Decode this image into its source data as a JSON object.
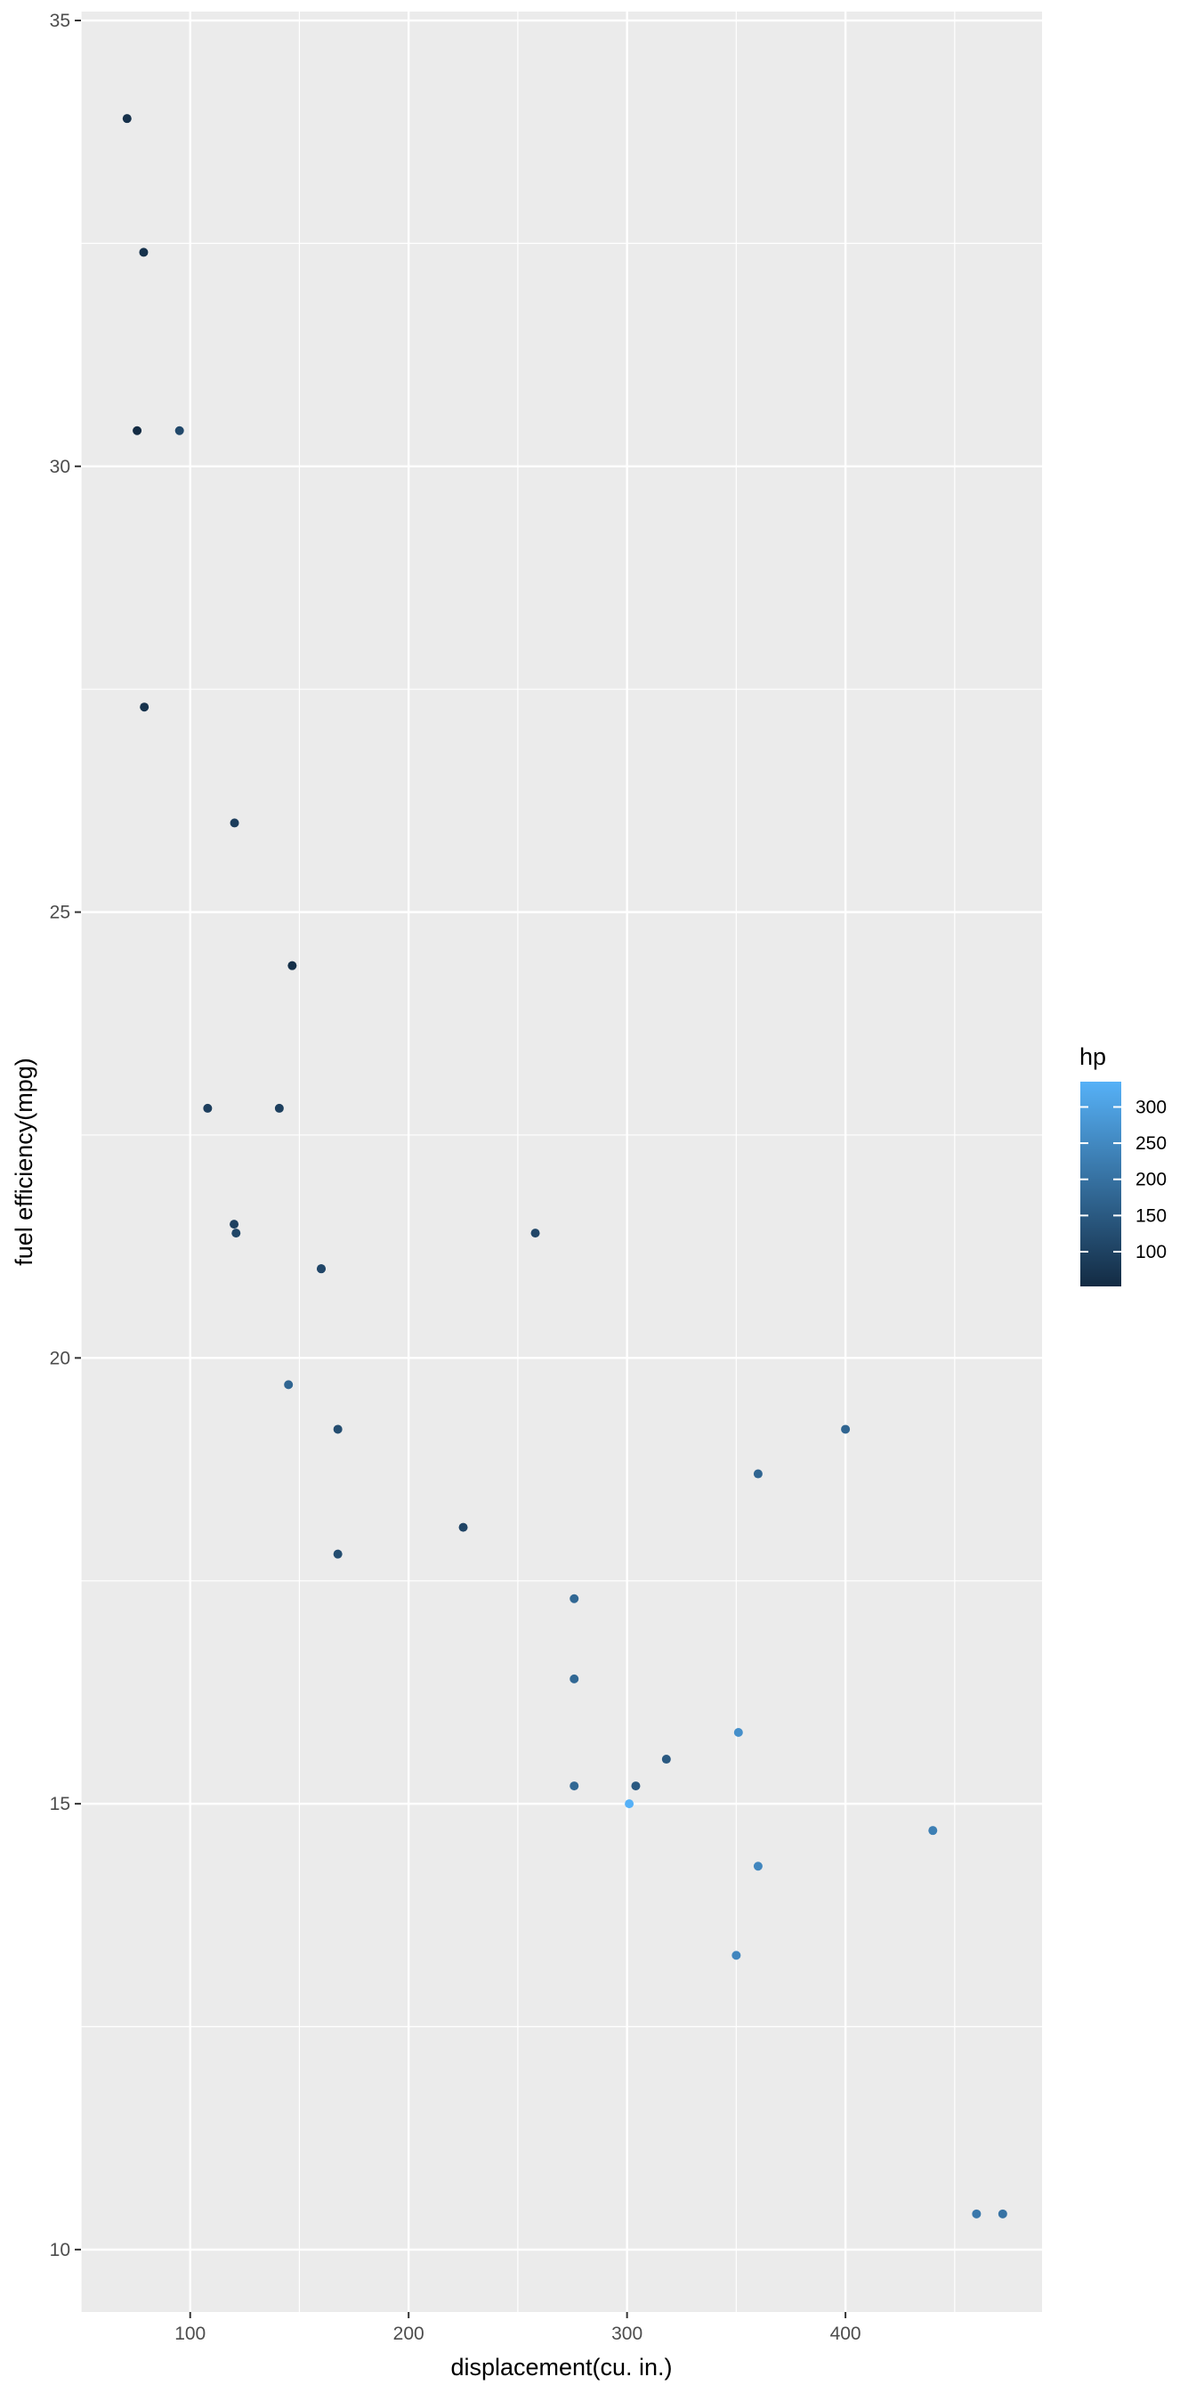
{
  "chart_data": {
    "type": "scatter",
    "xlabel": "displacement(cu. in.)",
    "ylabel": "fuel efficiency(mpg)",
    "xlim": [
      50,
      490
    ],
    "ylim": [
      9.3,
      35.1
    ],
    "x_ticks": [
      100,
      200,
      300,
      400
    ],
    "y_ticks": [
      10,
      15,
      20,
      25,
      30,
      35
    ],
    "grid": true,
    "legend": {
      "title": "hp",
      "placement": "right",
      "range": [
        52,
        335
      ],
      "ticks": [
        100,
        150,
        200,
        250,
        300
      ],
      "color_low": "#132B43",
      "color_high": "#56B1F7"
    },
    "points": [
      {
        "x": 160,
        "y": 21.0,
        "hp": 110
      },
      {
        "x": 160,
        "y": 21.0,
        "hp": 110
      },
      {
        "x": 108,
        "y": 22.8,
        "hp": 93
      },
      {
        "x": 258,
        "y": 21.4,
        "hp": 110
      },
      {
        "x": 360,
        "y": 18.7,
        "hp": 175
      },
      {
        "x": 225,
        "y": 18.1,
        "hp": 105
      },
      {
        "x": 360,
        "y": 14.3,
        "hp": 245
      },
      {
        "x": 146.7,
        "y": 24.4,
        "hp": 62
      },
      {
        "x": 140.8,
        "y": 22.8,
        "hp": 95
      },
      {
        "x": 167.6,
        "y": 19.2,
        "hp": 123
      },
      {
        "x": 167.6,
        "y": 17.8,
        "hp": 123
      },
      {
        "x": 275.8,
        "y": 16.4,
        "hp": 180
      },
      {
        "x": 275.8,
        "y": 17.3,
        "hp": 180
      },
      {
        "x": 275.8,
        "y": 15.2,
        "hp": 180
      },
      {
        "x": 472,
        "y": 10.4,
        "hp": 205
      },
      {
        "x": 460,
        "y": 10.4,
        "hp": 215
      },
      {
        "x": 440,
        "y": 14.7,
        "hp": 230
      },
      {
        "x": 78.7,
        "y": 32.4,
        "hp": 66
      },
      {
        "x": 75.7,
        "y": 30.4,
        "hp": 52
      },
      {
        "x": 71.1,
        "y": 33.9,
        "hp": 65
      },
      {
        "x": 120.1,
        "y": 21.5,
        "hp": 97
      },
      {
        "x": 318,
        "y": 15.5,
        "hp": 150
      },
      {
        "x": 304,
        "y": 15.2,
        "hp": 150
      },
      {
        "x": 350,
        "y": 13.3,
        "hp": 245
      },
      {
        "x": 400,
        "y": 19.2,
        "hp": 175
      },
      {
        "x": 79,
        "y": 27.3,
        "hp": 66
      },
      {
        "x": 120.3,
        "y": 26.0,
        "hp": 91
      },
      {
        "x": 95.1,
        "y": 30.4,
        "hp": 113
      },
      {
        "x": 351,
        "y": 15.8,
        "hp": 264
      },
      {
        "x": 145,
        "y": 19.7,
        "hp": 175
      },
      {
        "x": 301,
        "y": 15.0,
        "hp": 335
      },
      {
        "x": 121,
        "y": 21.4,
        "hp": 109
      }
    ]
  }
}
